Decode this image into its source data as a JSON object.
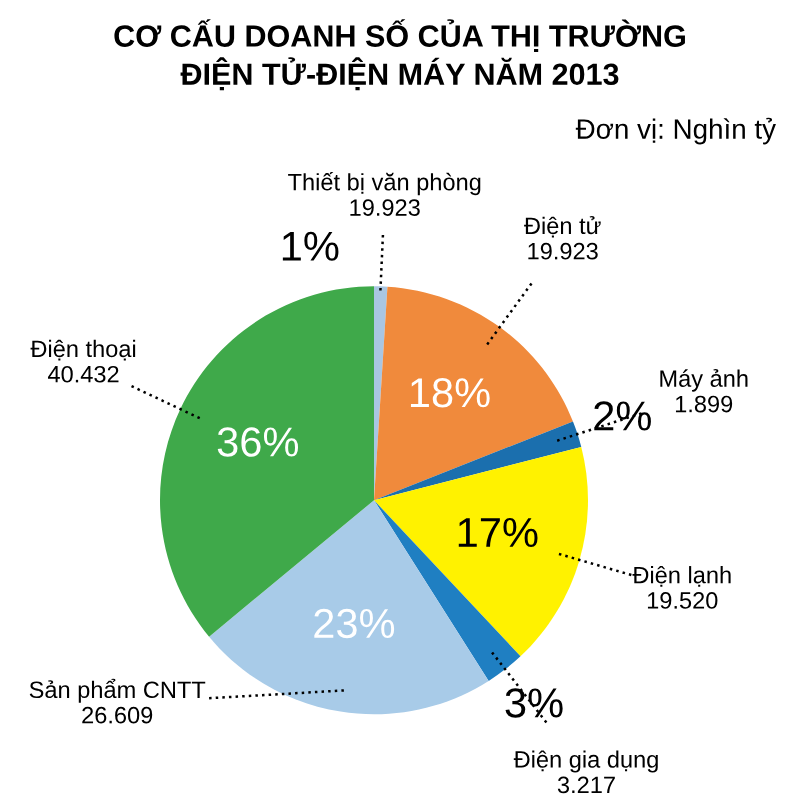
{
  "chart_data": {
    "type": "pie",
    "title": "CƠ CẤU DOANH SỐ CỦA THỊ TRƯỜNG\nĐIỆN TỬ-ĐIỆN MÁY NĂM 2013",
    "subtitle": "Đơn vị: Nghìn tỷ",
    "categories": [
      "Thiết bị văn phòng\n19.923",
      "Điện tử\n19.923",
      "Máy ảnh\n1.899",
      "Điện lạnh\n19.520",
      "Điện gia dụng\n3.217",
      "Sản phẩm CNTT\n26.609",
      "Điện thoại\n40.432"
    ],
    "values": [
      1,
      18,
      2,
      17,
      3,
      23,
      36
    ],
    "value_labels": [
      "1%",
      "18%",
      "2%",
      "17%",
      "3%",
      "23%",
      "36%"
    ],
    "colors": [
      "#a9c6e2",
      "#f08a3c",
      "#1b6fae",
      "#fff200",
      "#1f7fc2",
      "#a8cbe8",
      "#3fa94a"
    ]
  }
}
